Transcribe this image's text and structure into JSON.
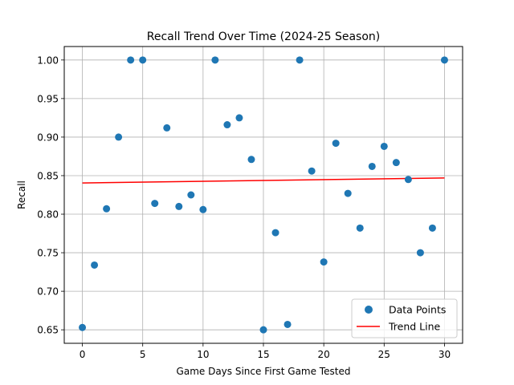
{
  "chart_data": {
    "type": "scatter",
    "title": "Recall Trend Over Time (2024-25 Season)",
    "xlabel": "Game Days Since First Game Tested",
    "ylabel": "Recall",
    "xlim": [
      -1.5,
      31.5
    ],
    "ylim": [
      0.6325,
      1.0175
    ],
    "xticks": [
      0,
      5,
      10,
      15,
      20,
      25,
      30
    ],
    "yticks": [
      0.65,
      0.7,
      0.75,
      0.8,
      0.85,
      0.9,
      0.95,
      1.0
    ],
    "xtick_labels": [
      "0",
      "5",
      "10",
      "15",
      "20",
      "25",
      "30"
    ],
    "ytick_labels": [
      "0.65",
      "0.70",
      "0.75",
      "0.80",
      "0.85",
      "0.90",
      "0.95",
      "1.00"
    ],
    "grid": true,
    "legend_position": "bottom-right",
    "series": [
      {
        "name": "Data Points",
        "kind": "scatter",
        "color": "#1f77b4",
        "x": [
          0,
          1,
          2,
          3,
          4,
          5,
          6,
          7,
          8,
          9,
          10,
          11,
          12,
          13,
          14,
          15,
          16,
          17,
          18,
          19,
          20,
          21,
          22,
          23,
          24,
          25,
          26,
          27,
          28,
          29,
          30
        ],
        "y": [
          0.653,
          0.734,
          0.807,
          0.9,
          1.0,
          1.0,
          0.814,
          0.912,
          0.81,
          0.825,
          0.806,
          1.0,
          0.916,
          0.925,
          0.871,
          0.65,
          0.776,
          0.657,
          1.0,
          0.856,
          0.738,
          0.892,
          0.827,
          0.782,
          0.862,
          0.888,
          0.867,
          0.845,
          0.75,
          0.782,
          1.0
        ]
      },
      {
        "name": "Trend Line",
        "kind": "line",
        "color": "#ff0000",
        "x": [
          0,
          30
        ],
        "y": [
          0.8405,
          0.847
        ]
      }
    ]
  }
}
